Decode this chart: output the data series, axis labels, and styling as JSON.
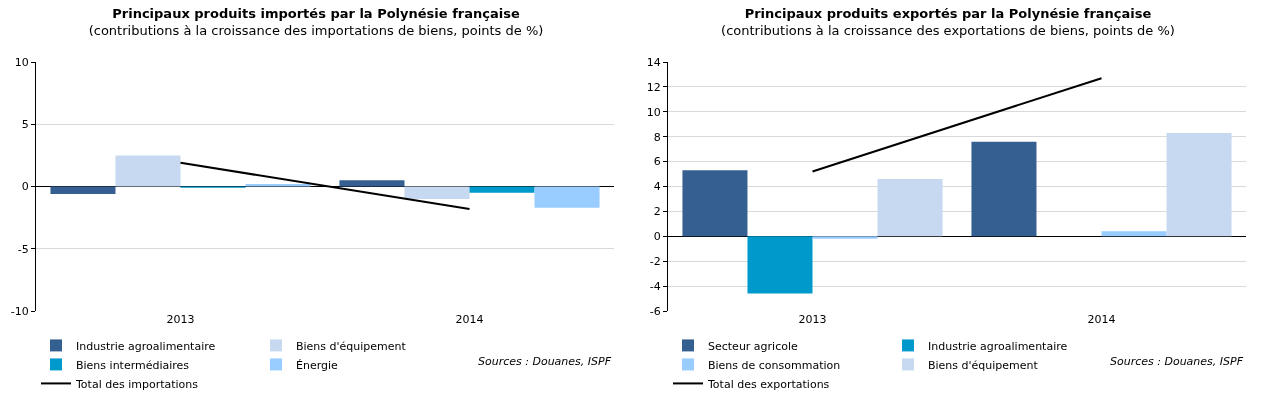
{
  "chart_data": [
    {
      "type": "bar",
      "title": "Principaux produits importés par la Polynésie française",
      "subtitle": "(contributions à la croissance des importations de biens, points de %)",
      "categories": [
        "2013",
        "2014"
      ],
      "series": [
        {
          "name": "Industrie agroalimentaire",
          "color": "#365f91",
          "values": [
            -0.6,
            0.5
          ]
        },
        {
          "name": "Biens d'équipement",
          "color": "#c6d9f1",
          "values": [
            2.5,
            -1.0
          ]
        },
        {
          "name": "Biens intermédiaires",
          "color": "#0099cc",
          "values": [
            -0.1,
            -0.5
          ]
        },
        {
          "name": "Énergie",
          "color": "#99ccff",
          "values": [
            0.2,
            -1.7
          ]
        },
        {
          "name": "Total des importations",
          "type": "line",
          "color": "#000000",
          "values": [
            1.9,
            -1.8
          ]
        }
      ],
      "ylim": [
        -10,
        10
      ],
      "yticks": [
        -10,
        -5,
        0,
        5,
        10
      ],
      "grid": "y",
      "legend": "bottom",
      "marker": "none",
      "line_style": "solid",
      "annotations": [
        "Sources : Douanes, ISPF"
      ]
    },
    {
      "type": "bar",
      "title": "Principaux produits exportés par la Polynésie française",
      "subtitle": "(contributions à la croissance des exportations de biens, points de %)",
      "categories": [
        "2013",
        "2014"
      ],
      "series": [
        {
          "name": "Secteur agricole",
          "color": "#365f91",
          "values": [
            5.3,
            7.6
          ]
        },
        {
          "name": "Industrie agroalimentaire",
          "color": "#0099cc",
          "values": [
            -4.6,
            null
          ]
        },
        {
          "name": "Biens de consommation",
          "color": "#99ccff",
          "values": [
            -0.2,
            0.4
          ]
        },
        {
          "name": "Biens d'équipement",
          "color": "#c6d9f1",
          "values": [
            4.6,
            8.3
          ]
        },
        {
          "name": "Total des exportations",
          "type": "line",
          "color": "#000000",
          "values": [
            5.2,
            12.7
          ]
        }
      ],
      "ylim": [
        -6,
        14
      ],
      "yticks": [
        -6,
        -4,
        -2,
        0,
        2,
        4,
        6,
        8,
        10,
        12,
        14
      ],
      "grid": "y",
      "legend": "bottom",
      "marker": "none",
      "line_style": "solid",
      "annotations": [
        "Sources : Douanes, ISPF"
      ]
    }
  ]
}
